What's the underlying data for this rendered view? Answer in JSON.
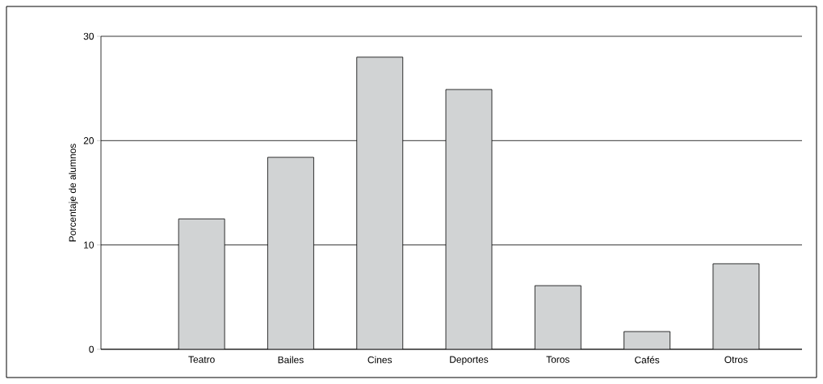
{
  "chart_data": {
    "type": "bar",
    "ylabel": "Porcentaje de alumnos",
    "categories": [
      "Teatro",
      "Bailes",
      "Cines",
      "Deportes",
      "Toros",
      "Cafés",
      "Otros"
    ],
    "values": [
      12.5,
      18.4,
      28,
      24.9,
      6.1,
      1.7,
      8.2
    ],
    "color": "#d1d3d4",
    "ylim": [
      0,
      30
    ],
    "yticks": [
      0,
      10,
      20,
      30
    ],
    "grid": "y"
  }
}
